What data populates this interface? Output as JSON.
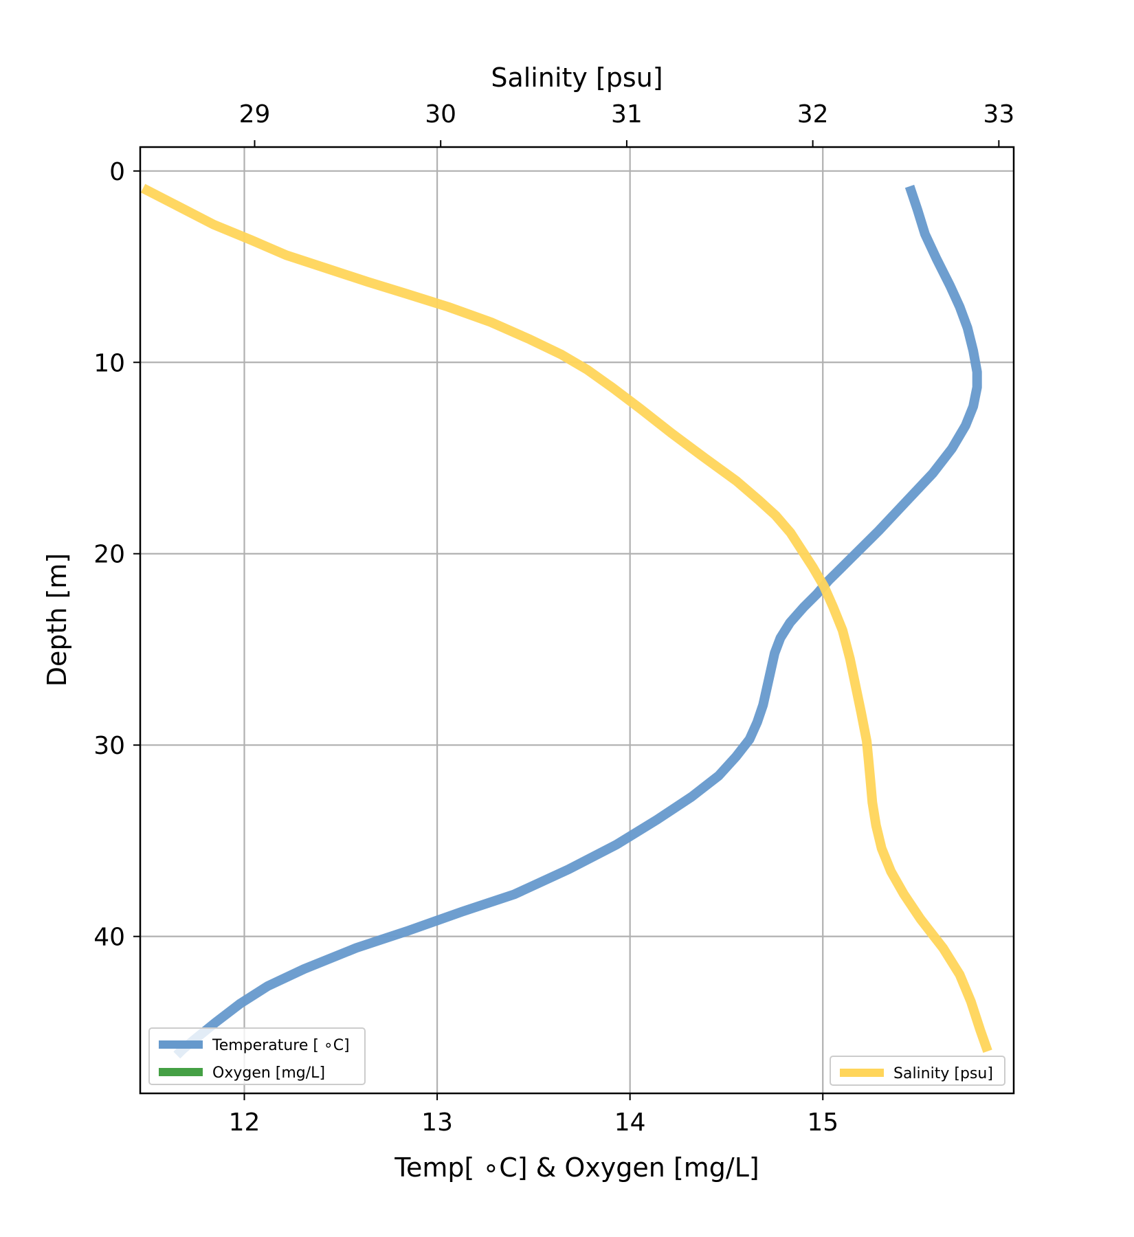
{
  "chart_data": {
    "type": "line",
    "axes": {
      "bottom": {
        "label": "Temp[ ∘C] & Oxygen [mg/L]",
        "range": [
          11.46,
          15.99
        ],
        "ticks": [
          12,
          13,
          14,
          15
        ],
        "tick_labels": [
          "12",
          "13",
          "14",
          "15"
        ]
      },
      "top": {
        "label": "Salinity [psu]",
        "range": [
          28.385,
          33.08
        ],
        "ticks": [
          29,
          30,
          31,
          32,
          33
        ],
        "tick_labels": [
          "29",
          "30",
          "31",
          "32",
          "33"
        ]
      },
      "left": {
        "label": "Depth [m]",
        "range": [
          -1.25,
          48.2
        ],
        "inverted": true,
        "ticks": [
          0,
          10,
          20,
          30,
          40
        ],
        "tick_labels": [
          "0",
          "10",
          "20",
          "30",
          "40"
        ]
      }
    },
    "grid": true,
    "series": [
      {
        "name": "Temperature [ ∘C]",
        "axis": "bottom",
        "color": "#6699cc",
        "points": [
          [
            15.45,
            0.8
          ],
          [
            15.49,
            2.0
          ],
          [
            15.53,
            3.3
          ],
          [
            15.59,
            4.6
          ],
          [
            15.66,
            6.0
          ],
          [
            15.71,
            7.1
          ],
          [
            15.75,
            8.2
          ],
          [
            15.78,
            9.4
          ],
          [
            15.8,
            10.5
          ],
          [
            15.8,
            11.3
          ],
          [
            15.78,
            12.3
          ],
          [
            15.74,
            13.3
          ],
          [
            15.67,
            14.5
          ],
          [
            15.57,
            15.8
          ],
          [
            15.43,
            17.3
          ],
          [
            15.29,
            18.8
          ],
          [
            15.21,
            19.6
          ],
          [
            15.15,
            20.2
          ],
          [
            15.09,
            20.8
          ],
          [
            15.03,
            21.4
          ],
          [
            14.97,
            22.1
          ],
          [
            14.9,
            22.8
          ],
          [
            14.83,
            23.6
          ],
          [
            14.78,
            24.4
          ],
          [
            14.75,
            25.2
          ],
          [
            14.73,
            26.1
          ],
          [
            14.71,
            27.0
          ],
          [
            14.69,
            27.9
          ],
          [
            14.66,
            28.8
          ],
          [
            14.62,
            29.7
          ],
          [
            14.55,
            30.6
          ],
          [
            14.46,
            31.6
          ],
          [
            14.32,
            32.7
          ],
          [
            14.14,
            33.9
          ],
          [
            13.93,
            35.2
          ],
          [
            13.68,
            36.5
          ],
          [
            13.4,
            37.8
          ],
          [
            13.13,
            38.7
          ],
          [
            12.85,
            39.7
          ],
          [
            12.58,
            40.6
          ],
          [
            12.31,
            41.7
          ],
          [
            12.12,
            42.6
          ],
          [
            11.98,
            43.5
          ],
          [
            11.85,
            44.5
          ],
          [
            11.74,
            45.4
          ],
          [
            11.68,
            45.9
          ],
          [
            11.65,
            46.2
          ]
        ]
      },
      {
        "name": "Oxygen [mg/L]",
        "axis": "bottom",
        "color": "#45a045",
        "points": []
      },
      {
        "name": "Salinity [psu]",
        "axis": "top",
        "color": "#ffd55a",
        "points": [
          [
            28.4,
            0.9
          ],
          [
            28.58,
            1.8
          ],
          [
            28.78,
            2.8
          ],
          [
            28.98,
            3.6
          ],
          [
            29.17,
            4.4
          ],
          [
            29.39,
            5.1
          ],
          [
            29.61,
            5.8
          ],
          [
            29.81,
            6.4
          ],
          [
            30.04,
            7.1
          ],
          [
            30.27,
            7.9
          ],
          [
            30.48,
            8.8
          ],
          [
            30.65,
            9.6
          ],
          [
            30.79,
            10.4
          ],
          [
            30.92,
            11.3
          ],
          [
            31.07,
            12.4
          ],
          [
            31.24,
            13.7
          ],
          [
            31.42,
            15.0
          ],
          [
            31.59,
            16.2
          ],
          [
            31.71,
            17.2
          ],
          [
            31.8,
            18.0
          ],
          [
            31.88,
            18.9
          ],
          [
            31.94,
            19.8
          ],
          [
            32.0,
            20.7
          ],
          [
            32.06,
            21.7
          ],
          [
            32.11,
            22.8
          ],
          [
            32.16,
            24.0
          ],
          [
            32.2,
            25.5
          ],
          [
            32.23,
            26.9
          ],
          [
            32.26,
            28.3
          ],
          [
            32.29,
            29.8
          ],
          [
            32.3,
            30.8
          ],
          [
            32.31,
            31.9
          ],
          [
            32.32,
            33.0
          ],
          [
            32.34,
            34.2
          ],
          [
            32.37,
            35.4
          ],
          [
            32.42,
            36.6
          ],
          [
            32.49,
            37.8
          ],
          [
            32.58,
            39.1
          ],
          [
            32.7,
            40.6
          ],
          [
            32.79,
            42.0
          ],
          [
            32.85,
            43.4
          ],
          [
            32.9,
            44.9
          ],
          [
            32.94,
            46.0
          ]
        ]
      }
    ],
    "legends": [
      {
        "position": "lower-left",
        "entries": [
          "Temperature [ ∘C]",
          "Oxygen [mg/L]"
        ]
      },
      {
        "position": "lower-right",
        "entries": [
          "Salinity [psu]"
        ]
      }
    ]
  }
}
